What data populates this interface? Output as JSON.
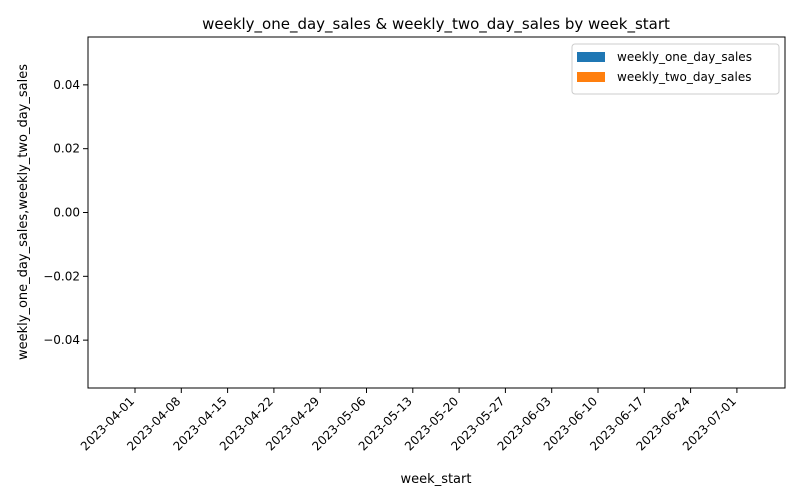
{
  "chart_data": {
    "type": "bar",
    "title": "weekly_one_day_sales & weekly_two_day_sales by week_start",
    "xlabel": "week_start",
    "ylabel": "weekly_one_day_sales,weekly_two_day_sales",
    "categories": [
      "2023-04-01",
      "2023-04-08",
      "2023-04-15",
      "2023-04-22",
      "2023-04-29",
      "2023-05-06",
      "2023-05-13",
      "2023-05-20",
      "2023-05-27",
      "2023-06-03",
      "2023-06-10",
      "2023-06-17",
      "2023-06-24",
      "2023-07-01"
    ],
    "series": [
      {
        "name": "weekly_one_day_sales",
        "color": "#1f77b4",
        "values": [
          0,
          0,
          0,
          0,
          0,
          0,
          0,
          0,
          0,
          0,
          0,
          0,
          0,
          0
        ]
      },
      {
        "name": "weekly_two_day_sales",
        "color": "#ff7f0e",
        "values": [
          0,
          0,
          0,
          0,
          0,
          0,
          0,
          0,
          0,
          0,
          0,
          0,
          0,
          0
        ]
      }
    ],
    "ylim": [
      -0.055,
      0.055
    ],
    "yticks": [
      "0.04",
      "0.02",
      "0.00",
      "−0.02",
      "−0.04"
    ],
    "ytick_values": [
      0.04,
      0.02,
      0.0,
      -0.02,
      -0.04
    ],
    "grid": false,
    "legend": "upper-right"
  }
}
